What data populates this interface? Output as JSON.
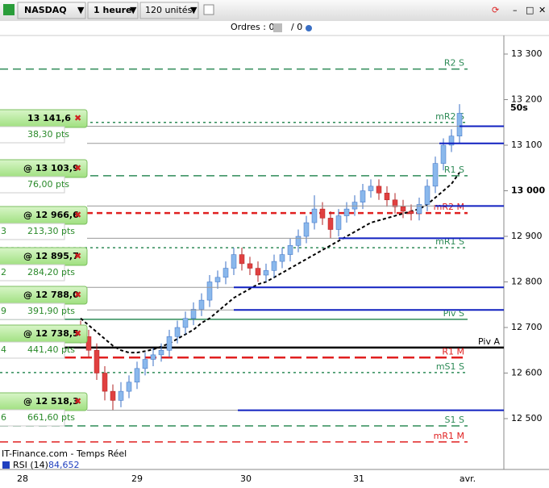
{
  "toolbar": {
    "symbol": "NASDAQ",
    "period": "1 heure",
    "units": "120 unités"
  },
  "orders_bar": {
    "orders": "Ordres : 0",
    "pending": "/ 0"
  },
  "price_axis": {
    "ticks": [
      {
        "value": 13300,
        "label": "13 300"
      },
      {
        "value": 13200,
        "label": "13 200"
      },
      {
        "value": 13100,
        "label": "13 100"
      },
      {
        "value": 13000,
        "label": "13 000"
      },
      {
        "value": 12900,
        "label": "12 900"
      },
      {
        "value": 12800,
        "label": "12 800"
      },
      {
        "value": 12700,
        "label": "12 700"
      },
      {
        "value": 12600,
        "label": "12 600"
      },
      {
        "value": 12500,
        "label": "12 500"
      }
    ],
    "countdown": "50s"
  },
  "date_axis": {
    "labels": [
      "28",
      "29",
      "30",
      "31",
      "avr."
    ]
  },
  "orders": [
    {
      "price_label": "13 141,6",
      "price": 13141.6,
      "distance": "38,30 pts",
      "side": null
    },
    {
      "price_label": "@ 13 103,9",
      "price": 13103.9,
      "distance": "76,00 pts",
      "side": null
    },
    {
      "price_label": "@ 12 966,6",
      "price": 12966.6,
      "distance": "213,30 pts",
      "side": "3"
    },
    {
      "price_label": "@ 12 895,7",
      "price": 12895.7,
      "distance": "284,20 pts",
      "side": "2"
    },
    {
      "price_label": "@ 12 788,0",
      "price": 12788.0,
      "distance": "391,90 pts",
      "side": "9"
    },
    {
      "price_label": "@ 12 738,5",
      "price": 12738.5,
      "distance": "441,40 pts",
      "side": "4"
    },
    {
      "price_label": "@ 12 518,3",
      "price": 12518.3,
      "distance": "661,60 pts",
      "side": "6"
    }
  ],
  "levels": [
    {
      "label": "R2 S",
      "price": 13267,
      "color": "#2e8b57",
      "style": "dashed"
    },
    {
      "label": "mR2 S",
      "price": 13150,
      "color": "#2e8b57",
      "style": "dotted"
    },
    {
      "label": "R1 S",
      "price": 13033,
      "color": "#2e8b57",
      "style": "dashed"
    },
    {
      "label": "mR2 M",
      "price": 12951,
      "color": "#e02020",
      "style": "thick"
    },
    {
      "label": "mR1 S",
      "price": 12875,
      "color": "#2e8b57",
      "style": "dotted"
    },
    {
      "label": "Piv S",
      "price": 12718,
      "color": "#2e8b57",
      "style": "solid"
    },
    {
      "label": "Piv A",
      "price": 12656,
      "color": "#000000",
      "style": "solid"
    },
    {
      "label": "R1 M",
      "price": 12634,
      "color": "#e02020",
      "style": "long"
    },
    {
      "label": "mS1 S",
      "price": 12601,
      "color": "#2e8b57",
      "style": "dotted"
    },
    {
      "label": "S1 S",
      "price": 12484,
      "color": "#2e8b57",
      "style": "dashed"
    },
    {
      "label": "mR1 M",
      "price": 12449,
      "color": "#e02020",
      "style": "dashed"
    }
  ],
  "candles": [
    [
      12700,
      12715,
      12665,
      12680
    ],
    [
      12680,
      12695,
      12635,
      12650
    ],
    [
      12650,
      12665,
      12585,
      12600
    ],
    [
      12600,
      12615,
      12540,
      12560
    ],
    [
      12560,
      12575,
      12518,
      12540
    ],
    [
      12540,
      12580,
      12525,
      12560
    ],
    [
      12560,
      12595,
      12545,
      12580
    ],
    [
      12580,
      12625,
      12565,
      12610
    ],
    [
      12610,
      12645,
      12595,
      12630
    ],
    [
      12630,
      12655,
      12615,
      12640
    ],
    [
      12640,
      12665,
      12625,
      12650
    ],
    [
      12650,
      12695,
      12635,
      12680
    ],
    [
      12680,
      12715,
      12665,
      12700
    ],
    [
      12700,
      12735,
      12685,
      12720
    ],
    [
      12720,
      12755,
      12705,
      12740
    ],
    [
      12740,
      12775,
      12725,
      12760
    ],
    [
      12760,
      12815,
      12745,
      12800
    ],
    [
      12800,
      12825,
      12785,
      12810
    ],
    [
      12810,
      12845,
      12795,
      12830
    ],
    [
      12830,
      12875,
      12815,
      12860
    ],
    [
      12860,
      12875,
      12825,
      12840
    ],
    [
      12840,
      12855,
      12815,
      12830
    ],
    [
      12830,
      12845,
      12800,
      12815
    ],
    [
      12815,
      12840,
      12800,
      12825
    ],
    [
      12825,
      12860,
      12810,
      12845
    ],
    [
      12845,
      12875,
      12830,
      12860
    ],
    [
      12860,
      12895,
      12845,
      12880
    ],
    [
      12880,
      12915,
      12865,
      12900
    ],
    [
      12900,
      12945,
      12885,
      12930
    ],
    [
      12930,
      12990,
      12915,
      12960
    ],
    [
      12960,
      12975,
      12925,
      12940
    ],
    [
      12940,
      12955,
      12895,
      12915
    ],
    [
      12915,
      12960,
      12900,
      12945
    ],
    [
      12945,
      12975,
      12930,
      12960
    ],
    [
      12960,
      12990,
      12945,
      12975
    ],
    [
      12975,
      13015,
      12960,
      13000
    ],
    [
      13000,
      13025,
      12985,
      13010
    ],
    [
      13010,
      13025,
      12980,
      12995
    ],
    [
      12995,
      13010,
      12965,
      12980
    ],
    [
      12980,
      12995,
      12950,
      12965
    ],
    [
      12965,
      12980,
      12940,
      12955
    ],
    [
      12955,
      12970,
      12935,
      12950
    ],
    [
      12950,
      12985,
      12935,
      12970
    ],
    [
      12970,
      13025,
      12955,
      13010
    ],
    [
      13010,
      13075,
      12995,
      13060
    ],
    [
      13060,
      13115,
      13045,
      13100
    ],
    [
      13100,
      13135,
      13085,
      13120
    ],
    [
      13120,
      13190,
      13105,
      13170
    ]
  ],
  "moving_average": [
    12720,
    12705,
    12690,
    12675,
    12660,
    12650,
    12645,
    12645,
    12648,
    12652,
    12658,
    12665,
    12675,
    12685,
    12695,
    12710,
    12720,
    12735,
    12750,
    12765,
    12775,
    12785,
    12795,
    12800,
    12810,
    12820,
    12830,
    12840,
    12850,
    12860,
    12870,
    12880,
    12890,
    12900,
    12910,
    12920,
    12930,
    12935,
    12940,
    12945,
    12950,
    12955,
    12960,
    12970,
    12985,
    13000,
    13015,
    13040
  ],
  "footer": {
    "source": "IT-Finance.com - Temps Réel",
    "indicator": "RSI (14)",
    "indicator_value": "84,652"
  }
}
